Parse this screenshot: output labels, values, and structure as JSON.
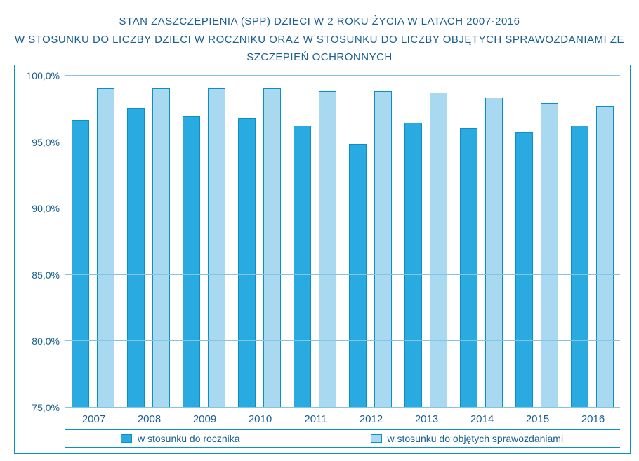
{
  "title_line1": "STAN ZASZCZEPIENIA (SPP) DZIECI W 2 ROKU ŻYCIA W LATACH 2007-2016",
  "title_line2": "W STOSUNKU DO LICZBY DZIECI W ROCZNIKU ORAZ W STOSUNKU DO LICZBY OBJĘTYCH SPRAWOZDANIAMI ZE SZCZEPIEŃ OCHRONNYCH",
  "chart": {
    "type": "bar",
    "categories": [
      "2007",
      "2008",
      "2009",
      "2010",
      "2011",
      "2012",
      "2013",
      "2014",
      "2015",
      "2016"
    ],
    "series": [
      {
        "key": "rocznik",
        "label": "w stosunku do rocznika",
        "color": "#29abe2",
        "values": [
          96.6,
          97.5,
          96.9,
          96.8,
          96.2,
          94.8,
          96.4,
          96.0,
          95.7,
          96.2
        ]
      },
      {
        "key": "sprawozdania",
        "label": "w stosunku do objętych sprawozdaniami",
        "color": "#a9d9f0",
        "values": [
          99.0,
          99.0,
          99.0,
          99.0,
          98.8,
          98.8,
          98.7,
          98.3,
          97.9,
          97.7
        ]
      }
    ],
    "ylim": [
      75.0,
      100.0
    ],
    "yticks": [
      75.0,
      80.0,
      85.0,
      90.0,
      95.0,
      100.0
    ],
    "ytick_labels": [
      "75,0%",
      "80,0%",
      "85,0%",
      "90,0%",
      "95,0%",
      "100,0%"
    ],
    "grid_color": "#85c5e4",
    "border_color": "#0a90c4",
    "text_color": "#1a5f8e",
    "background_color": "#ffffff",
    "title_fontsize": 15,
    "axis_fontsize": 14,
    "bar_gap_ratio": 0.18,
    "group_gap_ratio": 0.22
  }
}
